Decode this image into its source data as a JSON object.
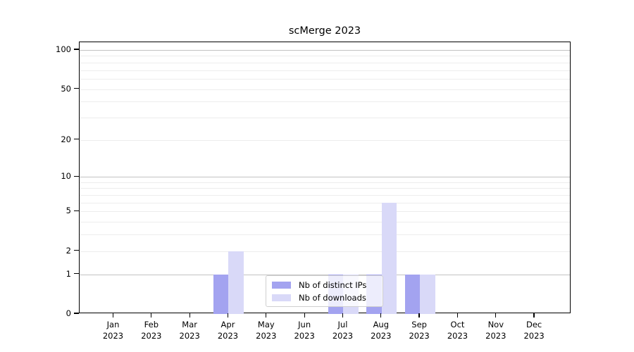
{
  "title": "scMerge 2023",
  "chart_data": {
    "type": "bar",
    "title": "scMerge 2023",
    "categories": [
      "Jan 2023",
      "Feb 2023",
      "Mar 2023",
      "Apr 2023",
      "May 2023",
      "Jun 2023",
      "Jul 2023",
      "Aug 2023",
      "Sep 2023",
      "Oct 2023",
      "Nov 2023",
      "Dec 2023"
    ],
    "series": [
      {
        "name": "Nb of distinct IPs",
        "color": "#a3a3f0",
        "values": [
          0,
          0,
          0,
          1,
          0,
          0,
          1,
          1,
          1,
          0,
          0,
          0
        ]
      },
      {
        "name": "Nb of downloads",
        "color": "#d9d9f8",
        "values": [
          0,
          0,
          0,
          2,
          0,
          0,
          1,
          6,
          1,
          0,
          0,
          0
        ]
      }
    ],
    "yscale": "log1p",
    "yticks": [
      0,
      1,
      2,
      5,
      10,
      20,
      50,
      100
    ],
    "ylim": [
      0,
      115
    ],
    "grid": "on",
    "legend_position": "lower center inside plot"
  },
  "colors": {
    "grid_minor": "#ededed",
    "grid_major": "#c2c2c2",
    "axis": "#000000",
    "legend_border": "#cfcfcf"
  }
}
